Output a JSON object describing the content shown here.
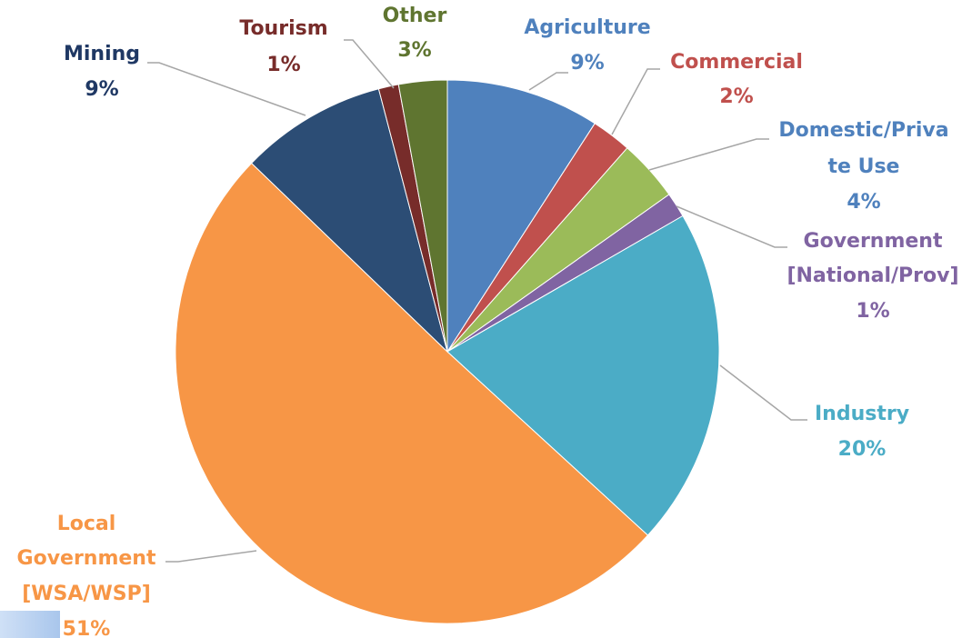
{
  "chart_data": {
    "type": "pie",
    "title": "",
    "slices": [
      {
        "label": [
          "Agriculture"
        ],
        "pct_label": "9%",
        "value": 9.2,
        "color": "#4f81bd"
      },
      {
        "label": [
          "Commercial"
        ],
        "pct_label": "2%",
        "value": 2.4,
        "color": "#c0504d"
      },
      {
        "label": [
          "Domestic/Priva",
          "te Use"
        ],
        "pct_label": "4%",
        "value": 3.7,
        "color": "#9bbb59"
      },
      {
        "label": [
          "Government",
          "[National/Prov]"
        ],
        "pct_label": "1%",
        "value": 1.5,
        "color": "#8064a2"
      },
      {
        "label": [
          "Industry"
        ],
        "pct_label": "20%",
        "value": 20.3,
        "color": "#4bacc6"
      },
      {
        "label": [
          "Local",
          "Government",
          "[WSA/WSP]"
        ],
        "pct_label": "51%",
        "value": 50.8,
        "color": "#f79646"
      },
      {
        "label": [
          "Mining"
        ],
        "pct_label": "9%",
        "value": 8.8,
        "color": "#2c4d75"
      },
      {
        "label": [
          "Tourism"
        ],
        "pct_label": "1%",
        "value": 1.2,
        "color": "#772c2a"
      },
      {
        "label": [
          "Other"
        ],
        "pct_label": "3%",
        "value": 2.9,
        "color": "#5f7530"
      }
    ],
    "label_colors": [
      "#4f81bd",
      "#c0504d",
      "#4f81bd",
      "#8064a2",
      "#4bacc6",
      "#f79646",
      "#1f3864",
      "#772c2a",
      "#5f7530"
    ],
    "legend": "none",
    "start_angle_deg": 0,
    "direction": "clockwise"
  }
}
